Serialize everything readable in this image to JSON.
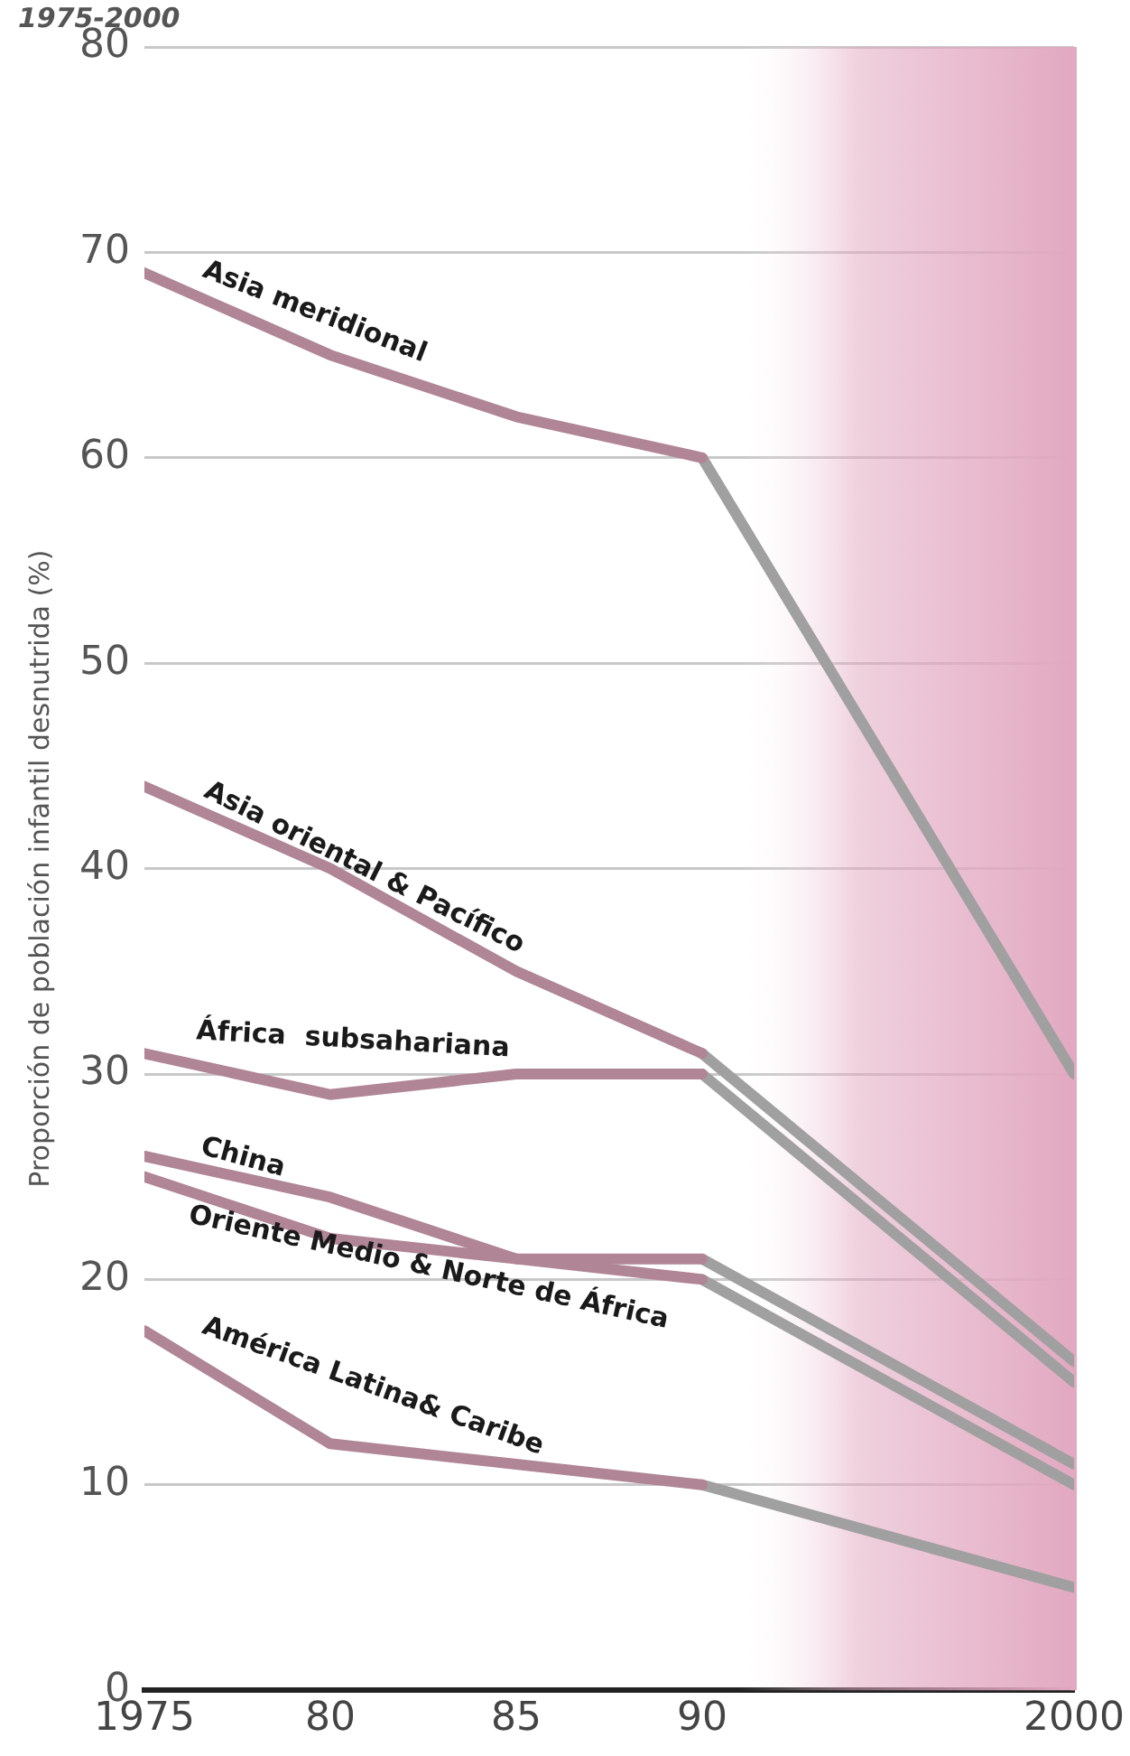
{
  "chart_data": {
    "type": "line",
    "title": "1975-2000",
    "ylabel": "Proporción de población infantil desnutrida (%)",
    "xlim": [
      1975,
      2000
    ],
    "xticks": [
      1975,
      {
        "value": 1980,
        "label": "80"
      },
      {
        "value": 1985,
        "label": "85"
      },
      {
        "value": 1990,
        "label": "90"
      },
      2000
    ],
    "ylim": [
      0,
      80
    ],
    "yticks": [
      0,
      10,
      20,
      30,
      40,
      50,
      60,
      70,
      80
    ],
    "grid": "y",
    "legend": false,
    "marker": "none",
    "bands": [
      {
        "axis": "x",
        "from": 1991,
        "to": 2000,
        "color": "#e2a9c1"
      }
    ],
    "series": [
      {
        "name": "Asia meridional",
        "color": "#b08595",
        "x": [
          1975,
          1980,
          1985,
          1990
        ],
        "values": [
          69,
          65,
          62,
          60
        ]
      },
      {
        "name": "Asia oriental & Pacífico",
        "color": "#b08595",
        "x": [
          1975,
          1980,
          1985,
          1990
        ],
        "values": [
          44,
          40,
          35,
          31
        ]
      },
      {
        "name": "África  subsahariana",
        "color": "#b08595",
        "x": [
          1975,
          1980,
          1985,
          1990
        ],
        "values": [
          31,
          29,
          30,
          30
        ]
      },
      {
        "name": "China",
        "color": "#b08595",
        "x": [
          1975,
          1980,
          1985,
          1990
        ],
        "values": [
          26,
          24,
          21,
          21
        ]
      },
      {
        "name": "Oriente Medio & Norte de África",
        "color": "#b08595",
        "x": [
          1975,
          1980,
          1985,
          1990
        ],
        "values": [
          25,
          22,
          21,
          20
        ]
      },
      {
        "name": "América Latina& Caribe",
        "color": "#b08595",
        "x": [
          1975,
          1980,
          1985,
          1990
        ],
        "values": [
          17.5,
          12,
          11,
          10
        ]
      },
      {
        "color": "#a0a0a0",
        "x": [
          1990,
          2000
        ],
        "values": [
          60,
          30
        ]
      },
      {
        "color": "#a0a0a0",
        "x": [
          1990,
          2000
        ],
        "values": [
          31,
          16
        ]
      },
      {
        "color": "#a0a0a0",
        "x": [
          1990,
          2000
        ],
        "values": [
          30,
          15
        ]
      },
      {
        "color": "#a0a0a0",
        "x": [
          1990,
          2000
        ],
        "values": [
          21,
          11
        ]
      },
      {
        "color": "#a0a0a0",
        "x": [
          1990,
          2000
        ],
        "values": [
          20,
          10
        ]
      },
      {
        "color": "#a0a0a0",
        "x": [
          1990,
          2000
        ],
        "values": [
          10,
          5
        ]
      }
    ]
  }
}
